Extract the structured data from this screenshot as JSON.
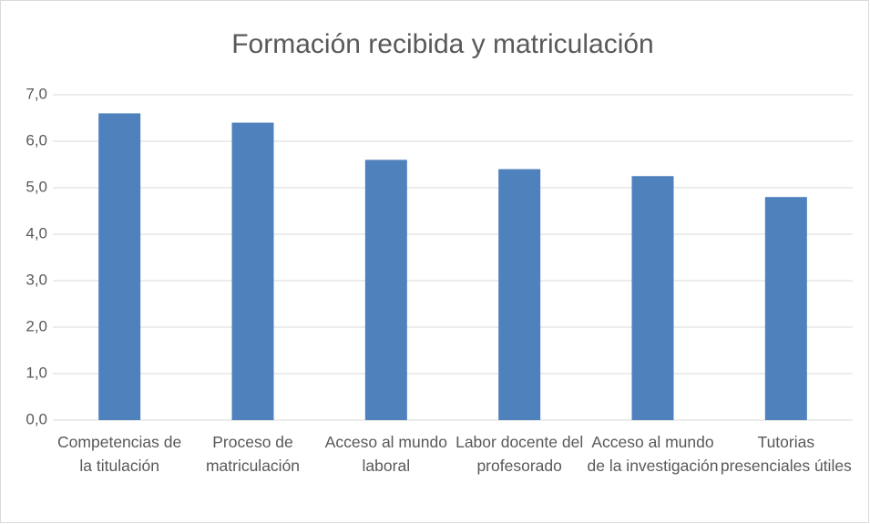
{
  "chart_data": {
    "type": "bar",
    "title": "Formación recibida y matriculación",
    "categories": [
      "Competencias de la titulación",
      "Proceso de matriculación",
      "Acceso al mundo laboral",
      "Labor docente del profesorado",
      "Acceso al mundo de la investigación",
      "Tutorias presenciales útiles"
    ],
    "values": [
      6.6,
      6.4,
      5.6,
      5.4,
      5.25,
      4.8
    ],
    "color": "#4f81bd",
    "ylim": [
      0,
      7
    ],
    "yticks": [
      {
        "value": 0,
        "label": "0,0"
      },
      {
        "value": 1,
        "label": "1,0"
      },
      {
        "value": 2,
        "label": "2,0"
      },
      {
        "value": 3,
        "label": "3,0"
      },
      {
        "value": 4,
        "label": "4,0"
      },
      {
        "value": 5,
        "label": "5,0"
      },
      {
        "value": 6,
        "label": "6,0"
      },
      {
        "value": 7,
        "label": "7,0"
      }
    ],
    "grid": true
  }
}
